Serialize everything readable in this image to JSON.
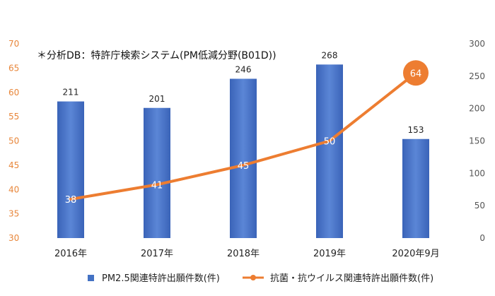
{
  "chart_data": {
    "type": "bar",
    "note": "＊分析DB：特許庁検索システム(PM低減分野(B01D))",
    "categories": [
      "2016年",
      "2017年",
      "2018年",
      "2019年",
      "2020年9月"
    ],
    "series": [
      {
        "name": "PM2.5関連特許出願件数(件)",
        "type": "bar",
        "axis": "right",
        "values": [
          211,
          201,
          246,
          268,
          153
        ],
        "color": "#4472c4"
      },
      {
        "name": "抗菌・抗ウイルス関連特許出願件数(件)",
        "type": "line",
        "axis": "left",
        "values": [
          38,
          41,
          45,
          50,
          64
        ],
        "color": "#ed7d31"
      }
    ],
    "y_left": {
      "range": [
        30,
        70
      ],
      "ticks": [
        "30",
        "35",
        "40",
        "45",
        "50",
        "55",
        "60",
        "65",
        "70"
      ]
    },
    "y_right": {
      "range": [
        0,
        300
      ],
      "ticks": [
        "0",
        "50",
        "100",
        "150",
        "200",
        "250",
        "300"
      ]
    },
    "grid": false,
    "legend_position": "bottom"
  }
}
